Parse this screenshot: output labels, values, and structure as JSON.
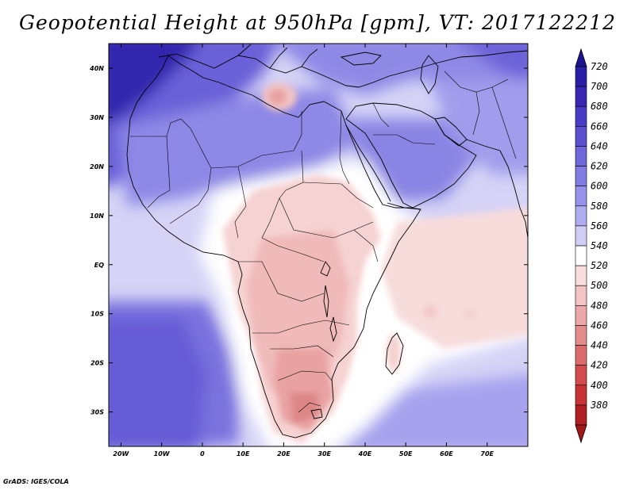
{
  "title": "Geopotential Height at 950hPa [gpm], VT: 2017122212",
  "credit": "GrADS: IGES/COLA",
  "map": {
    "region": "Africa and Middle East",
    "lon_range": [
      -23,
      80
    ],
    "lat_range": [
      -37,
      45
    ],
    "lat_ticks": [
      {
        "value": 40,
        "label": "40N"
      },
      {
        "value": 30,
        "label": "30N"
      },
      {
        "value": 20,
        "label": "20N"
      },
      {
        "value": 10,
        "label": "10N"
      },
      {
        "value": 0,
        "label": "EQ"
      },
      {
        "value": -10,
        "label": "10S"
      },
      {
        "value": -20,
        "label": "20S"
      },
      {
        "value": -30,
        "label": "30S"
      }
    ],
    "lon_ticks": [
      {
        "value": -20,
        "label": "20W"
      },
      {
        "value": -10,
        "label": "10W"
      },
      {
        "value": 0,
        "label": "0"
      },
      {
        "value": 10,
        "label": "10E"
      },
      {
        "value": 20,
        "label": "20E"
      },
      {
        "value": 30,
        "label": "30E"
      },
      {
        "value": 40,
        "label": "40E"
      },
      {
        "value": 50,
        "label": "50E"
      },
      {
        "value": 60,
        "label": "60E"
      },
      {
        "value": 70,
        "label": "70E"
      }
    ]
  },
  "colorbar": {
    "units": "gpm",
    "levels": [
      {
        "label": "720",
        "color": "#2a1fa6"
      },
      {
        "label": "700",
        "color": "#3828b4"
      },
      {
        "label": "680",
        "color": "#4a3cc4"
      },
      {
        "label": "660",
        "color": "#5c50d0"
      },
      {
        "label": "640",
        "color": "#6e66da"
      },
      {
        "label": "620",
        "color": "#827ce2"
      },
      {
        "label": "600",
        "color": "#9892ea"
      },
      {
        "label": "580",
        "color": "#b0acf0"
      },
      {
        "label": "560",
        "color": "#d0cdf6"
      },
      {
        "label": "540",
        "color": "#ffffff"
      },
      {
        "label": "520",
        "color": "#f8dede"
      },
      {
        "label": "500",
        "color": "#f4c4c4"
      },
      {
        "label": "480",
        "color": "#eca8a8"
      },
      {
        "label": "460",
        "color": "#e48c8c"
      },
      {
        "label": "440",
        "color": "#dc6c6c"
      },
      {
        "label": "420",
        "color": "#d44c4c"
      },
      {
        "label": "400",
        "color": "#c83434"
      },
      {
        "label": "380",
        "color": "#b02020"
      }
    ],
    "top_color": "#1c1490",
    "bottom_color": "#a01818"
  }
}
